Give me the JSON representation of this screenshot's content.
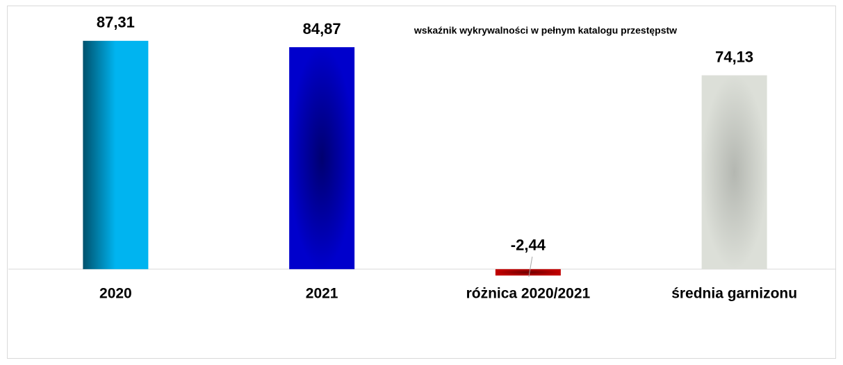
{
  "chart_data": {
    "type": "bar",
    "title": "wskaźnik wykrywalności w pełnym katalogu przestępstw",
    "categories": [
      "2020",
      "2021",
      "różnica 2020/2021",
      "średnia garnizonu"
    ],
    "values": [
      87.31,
      84.87,
      -2.44,
      74.13
    ],
    "value_labels": [
      "87,31",
      "84,87",
      "-2,44",
      "74,13"
    ],
    "colors": [
      "#00b4f0",
      "#0000cc",
      "#c00000",
      "#dcdfd8"
    ],
    "ylim": [
      -34,
      100
    ]
  }
}
